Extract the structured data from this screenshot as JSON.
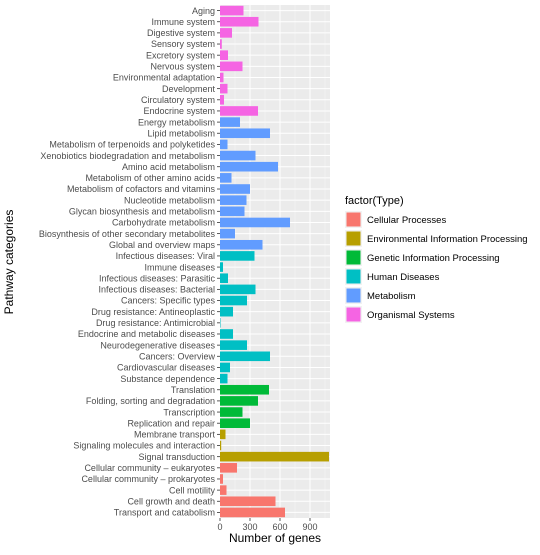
{
  "chart_data": {
    "type": "bar",
    "orientation": "horizontal",
    "xlabel": "Number of genes",
    "ylabel": "Pathway categories",
    "xlim": [
      0,
      1100
    ],
    "xticks": [
      0,
      300,
      600,
      900
    ],
    "grid": true,
    "legend": {
      "title": "factor(Type)",
      "placement": "right",
      "entries": [
        {
          "name": "Cellular Processes",
          "color": "#F8766D"
        },
        {
          "name": "Environmental Information Processing",
          "color": "#B79F00"
        },
        {
          "name": "Genetic Information Processing",
          "color": "#00BA38"
        },
        {
          "name": "Human Diseases",
          "color": "#00BFC4"
        },
        {
          "name": "Metabolism",
          "color": "#619CFF"
        },
        {
          "name": "Organismal Systems",
          "color": "#F564E3"
        }
      ]
    },
    "bars": [
      {
        "label": "Aging",
        "value": 235,
        "type": "Organismal Systems"
      },
      {
        "label": "Immune system",
        "value": 385,
        "type": "Organismal Systems"
      },
      {
        "label": "Digestive system",
        "value": 120,
        "type": "Organismal Systems"
      },
      {
        "label": "Sensory system",
        "value": 18,
        "type": "Organismal Systems"
      },
      {
        "label": "Excretory system",
        "value": 80,
        "type": "Organismal Systems"
      },
      {
        "label": "Nervous system",
        "value": 225,
        "type": "Organismal Systems"
      },
      {
        "label": "Environmental adaptation",
        "value": 35,
        "type": "Organismal Systems"
      },
      {
        "label": "Development",
        "value": 75,
        "type": "Organismal Systems"
      },
      {
        "label": "Circulatory system",
        "value": 40,
        "type": "Organismal Systems"
      },
      {
        "label": "Endocrine system",
        "value": 380,
        "type": "Organismal Systems"
      },
      {
        "label": "Energy metabolism",
        "value": 200,
        "type": "Metabolism"
      },
      {
        "label": "Lipid metabolism",
        "value": 500,
        "type": "Metabolism"
      },
      {
        "label": "Metabolism of terpenoids and polyketides",
        "value": 75,
        "type": "Metabolism"
      },
      {
        "label": "Xenobiotics biodegradation and metabolism",
        "value": 355,
        "type": "Metabolism"
      },
      {
        "label": "Amino acid metabolism",
        "value": 580,
        "type": "Metabolism"
      },
      {
        "label": "Metabolism of other amino acids",
        "value": 115,
        "type": "Metabolism"
      },
      {
        "label": "Metabolism of cofactors and vitamins",
        "value": 300,
        "type": "Metabolism"
      },
      {
        "label": "Nucleotide metabolism",
        "value": 265,
        "type": "Metabolism"
      },
      {
        "label": "Glycan biosynthesis and metabolism",
        "value": 245,
        "type": "Metabolism"
      },
      {
        "label": "Carbohydrate metabolism",
        "value": 700,
        "type": "Metabolism"
      },
      {
        "label": "Biosynthesis of other secondary metabolites",
        "value": 150,
        "type": "Metabolism"
      },
      {
        "label": "Global and overview maps",
        "value": 425,
        "type": "Metabolism"
      },
      {
        "label": "Infectious diseases: Viral",
        "value": 345,
        "type": "Human Diseases"
      },
      {
        "label": "Immune diseases",
        "value": 30,
        "type": "Human Diseases"
      },
      {
        "label": "Infectious diseases: Parasitic",
        "value": 80,
        "type": "Human Diseases"
      },
      {
        "label": "Infectious diseases: Bacterial",
        "value": 355,
        "type": "Human Diseases"
      },
      {
        "label": "Cancers: Specific types",
        "value": 270,
        "type": "Human Diseases"
      },
      {
        "label": "Drug resistance: Antineoplastic",
        "value": 130,
        "type": "Human Diseases"
      },
      {
        "label": "Drug resistance: Antimicrobial",
        "value": 5,
        "type": "Human Diseases"
      },
      {
        "label": "Endocrine and metabolic diseases",
        "value": 130,
        "type": "Human Diseases"
      },
      {
        "label": "Neurodegenerative diseases",
        "value": 270,
        "type": "Human Diseases"
      },
      {
        "label": "Cancers: Overview",
        "value": 500,
        "type": "Human Diseases"
      },
      {
        "label": "Cardiovascular diseases",
        "value": 100,
        "type": "Human Diseases"
      },
      {
        "label": "Substance dependence",
        "value": 75,
        "type": "Human Diseases"
      },
      {
        "label": "Translation",
        "value": 490,
        "type": "Genetic Information Processing"
      },
      {
        "label": "Folding, sorting and degradation",
        "value": 380,
        "type": "Genetic Information Processing"
      },
      {
        "label": "Transcription",
        "value": 225,
        "type": "Genetic Information Processing"
      },
      {
        "label": "Replication and repair",
        "value": 300,
        "type": "Genetic Information Processing"
      },
      {
        "label": "Membrane transport",
        "value": 55,
        "type": "Environmental Information Processing"
      },
      {
        "label": "Signaling molecules and interaction",
        "value": 12,
        "type": "Environmental Information Processing"
      },
      {
        "label": "Signal transduction",
        "value": 1090,
        "type": "Environmental Information Processing"
      },
      {
        "label": "Cellular community – eukaryotes",
        "value": 170,
        "type": "Cellular Processes"
      },
      {
        "label": "Cellular community – prokaryotes",
        "value": 30,
        "type": "Cellular Processes"
      },
      {
        "label": "Cell motility",
        "value": 65,
        "type": "Cellular Processes"
      },
      {
        "label": "Cell growth and death",
        "value": 555,
        "type": "Cellular Processes"
      },
      {
        "label": "Transport and catabolism",
        "value": 650,
        "type": "Cellular Processes"
      }
    ]
  }
}
